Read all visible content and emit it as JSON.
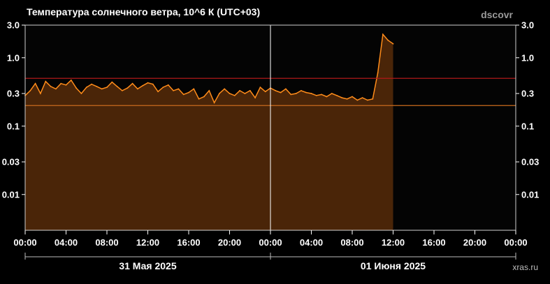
{
  "header": {
    "title": "Температура солнечного ветра, 10^6 К (UTC+03)",
    "source": "dscovr",
    "credit": "xras.ru"
  },
  "colors": {
    "background": "#000000",
    "plot_background": "#040404",
    "line": "#ff8c1a",
    "fill": "#4a2508",
    "threshold_high": "#b01818",
    "threshold_low": "#c86a1c",
    "now_line": "#ffffff"
  },
  "chart_data": {
    "type": "area",
    "title": "Температура солнечного ветра, 10^6 К (UTC+03)",
    "xlabel": "",
    "ylabel": "",
    "y_scale": "log",
    "ylim": [
      0.003,
      3.0
    ],
    "yticks": [
      3.0,
      1.0,
      0.3,
      0.1,
      0.03,
      0.01
    ],
    "ytick_labels": [
      "3.0",
      "1.0",
      "0.3",
      "0.1",
      "0.03",
      "0.01"
    ],
    "xlim_hours": [
      0,
      48
    ],
    "xtick_hours": [
      0,
      4,
      8,
      12,
      16,
      20,
      24,
      28,
      32,
      36,
      40,
      44,
      48
    ],
    "xtick_labels": [
      "00:00",
      "04:00",
      "08:00",
      "12:00",
      "16:00",
      "20:00",
      "00:00",
      "04:00",
      "08:00",
      "12:00",
      "16:00",
      "20:00",
      "00:00"
    ],
    "date_labels": [
      {
        "text": "31 Мая 2025",
        "span_hours": [
          0,
          24
        ]
      },
      {
        "text": "01 Июня 2025",
        "span_hours": [
          24,
          48
        ]
      }
    ],
    "thresholds": [
      {
        "value": 0.5,
        "color": "#b01818"
      },
      {
        "value": 0.2,
        "color": "#c86a1c"
      }
    ],
    "current_time_hour": 24,
    "grid": false,
    "legend": "none",
    "series": [
      {
        "x_hours": [
          0,
          0.5,
          1,
          1.5,
          2,
          2.5,
          3,
          3.5,
          4,
          4.5,
          5,
          5.5,
          6,
          6.5,
          7,
          7.5,
          8,
          8.5,
          9,
          9.5,
          10,
          10.5,
          11,
          11.5,
          12,
          12.5,
          13,
          13.5,
          14,
          14.5,
          15,
          15.5,
          16,
          16.5,
          17,
          17.5,
          18,
          18.5,
          19,
          19.5,
          20,
          20.5,
          21,
          21.5,
          22,
          22.5,
          23,
          23.5,
          24,
          24.5,
          25,
          25.5,
          26,
          26.5,
          27,
          27.5,
          28,
          28.5,
          29,
          29.5,
          30,
          30.5,
          31,
          31.5,
          32,
          32.5,
          33,
          33.5,
          34,
          34.5,
          35,
          35.5,
          36,
          36.5,
          37,
          37.5,
          38,
          38.5,
          39,
          39.5,
          40,
          40.5,
          41,
          41.5,
          42,
          42.5,
          43,
          43.5,
          44,
          44.5,
          45,
          45.5,
          46,
          46.5,
          47,
          47.5,
          48
        ],
        "values": [
          0.28,
          0.33,
          0.42,
          0.3,
          0.45,
          0.38,
          0.35,
          0.42,
          0.4,
          0.47,
          0.36,
          0.3,
          0.37,
          0.41,
          0.38,
          0.35,
          0.37,
          0.44,
          0.38,
          0.33,
          0.36,
          0.42,
          0.35,
          0.39,
          0.43,
          0.41,
          0.32,
          0.37,
          0.4,
          0.33,
          0.35,
          0.29,
          0.31,
          0.35,
          0.25,
          0.27,
          0.33,
          0.22,
          0.3,
          0.35,
          0.3,
          0.28,
          0.33,
          0.3,
          0.33,
          0.26,
          0.37,
          0.32,
          0.36,
          0.33,
          0.31,
          0.35,
          0.29,
          0.3,
          0.33,
          0.31,
          0.3,
          0.28,
          0.29,
          0.27,
          0.3,
          0.28,
          0.26,
          0.25,
          0.27,
          0.24,
          0.26,
          0.24,
          0.25,
          0.6,
          2.2,
          1.8,
          1.6,
          null,
          null,
          null,
          null,
          null,
          null,
          null,
          null,
          null,
          null,
          null,
          null,
          null,
          null,
          null,
          null,
          null,
          null,
          null,
          null,
          null,
          null,
          null,
          null
        ]
      }
    ]
  }
}
